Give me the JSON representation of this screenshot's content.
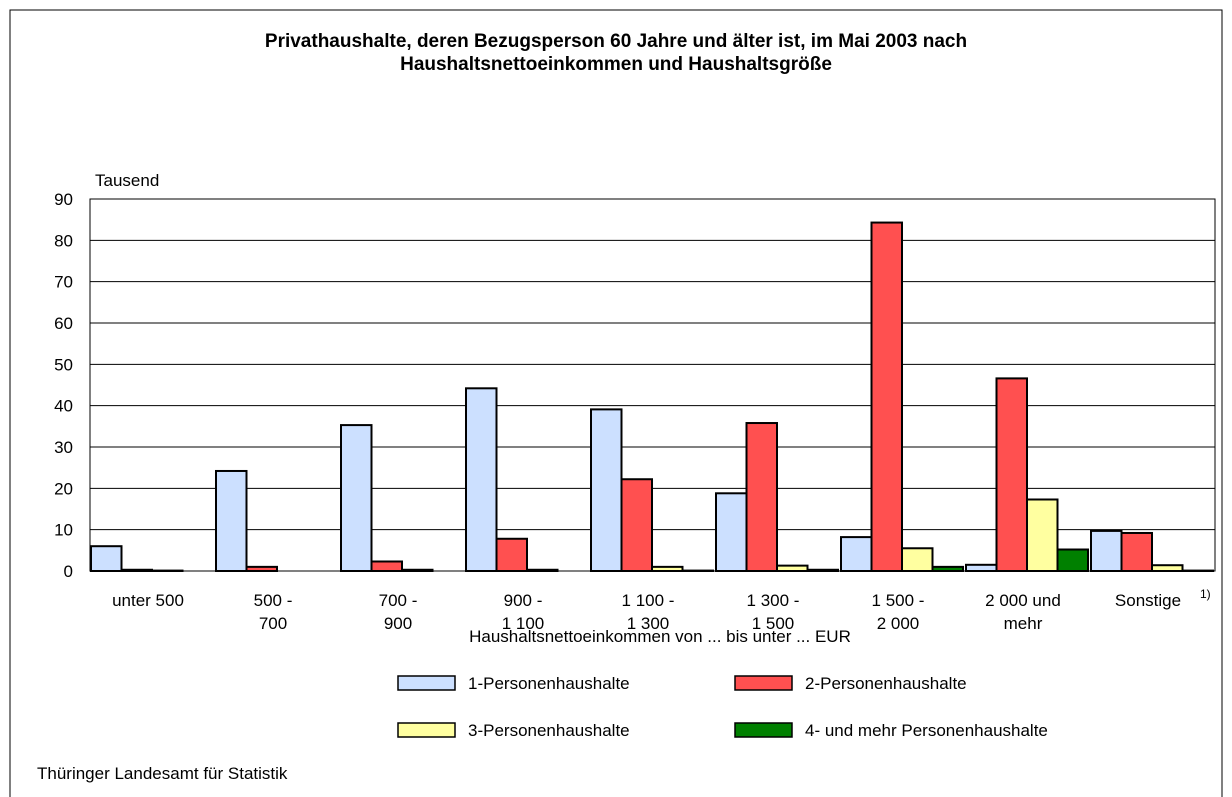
{
  "chart_data": {
    "type": "bar",
    "title": "Privathaushalte, deren Bezugsperson 60 Jahre und älter ist, im Mai 2003 nach\nHaushaltsnettoeinkommen und Haushaltsgröße",
    "y_label": "Tausend",
    "x_label": "Haushaltsnettoeinkommen von ... bis unter ... EUR",
    "source": "Thüringer Landesamt für Statistik",
    "categories": [
      "unter 500",
      "500  -\n700",
      "700 -\n900",
      "900 -\n1 100",
      "1 100 -\n1 300",
      "1 300 -\n1 500",
      "1 500 -\n2 000",
      "2 000 und\nmehr",
      "Sonstige"
    ],
    "category_footnote": "1)",
    "series": [
      {
        "name": "1-Personenhaushalte",
        "color": "#cce0ff",
        "values": [
          6.0,
          24.2,
          35.3,
          44.2,
          39.1,
          18.8,
          8.2,
          1.5,
          9.7
        ]
      },
      {
        "name": "2-Personenhaushalte",
        "color": "#ff5050",
        "values": [
          0.3,
          1.0,
          2.3,
          7.8,
          22.2,
          35.8,
          84.3,
          46.6,
          9.2
        ]
      },
      {
        "name": "3-Personenhaushalte",
        "color": "#ffffa0",
        "values": [
          0.1,
          0,
          0.3,
          0.3,
          1.0,
          1.3,
          5.5,
          17.3,
          1.4
        ]
      },
      {
        "name": "4- und mehr Personenhaushalte",
        "color": "#008000",
        "values": [
          0,
          0,
          0,
          0,
          0.1,
          0.3,
          1.0,
          5.2,
          0.1
        ]
      }
    ],
    "ylim": [
      0,
      90
    ],
    "yticks": [
      0,
      10,
      20,
      30,
      40,
      50,
      60,
      70,
      80,
      90
    ],
    "grid": true
  }
}
